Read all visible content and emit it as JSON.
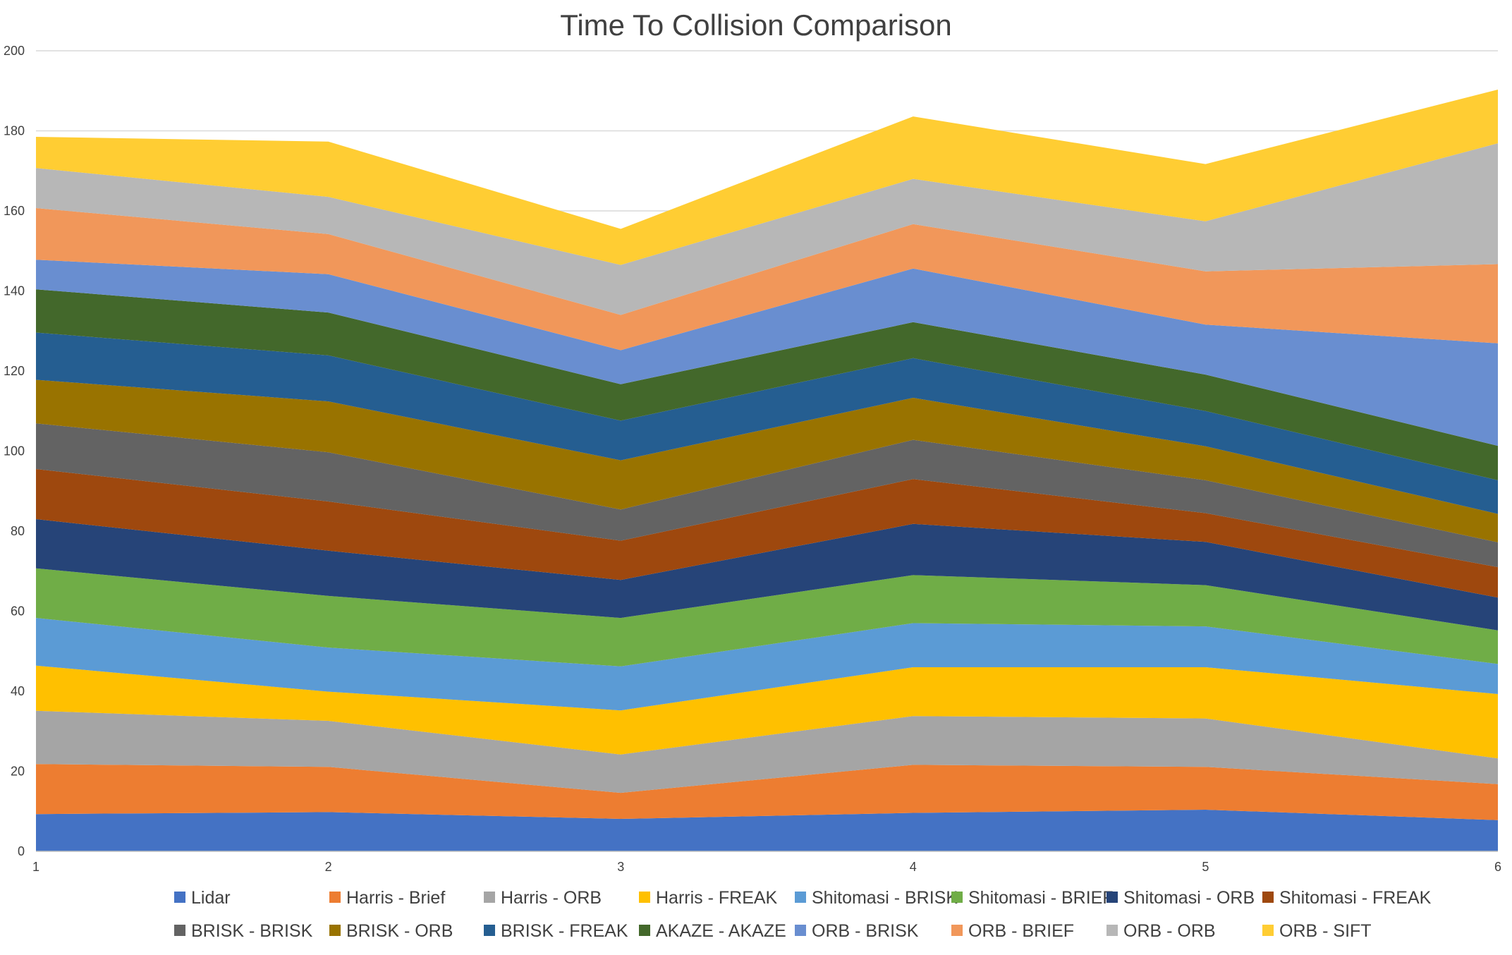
{
  "chart_data": {
    "type": "area",
    "stacked": true,
    "title": "Time To Collision Comparison",
    "xlabel": "",
    "ylabel": "",
    "categories": [
      "1",
      "2",
      "3",
      "4",
      "5",
      "6"
    ],
    "ylim": [
      0,
      200
    ],
    "yticks": [
      "0",
      "20",
      "40",
      "60",
      "80",
      "100",
      "120",
      "140",
      "160",
      "180",
      "200"
    ],
    "grid": true,
    "legend_position": "bottom",
    "series": [
      {
        "name": "Lidar",
        "color": "#4472C4",
        "values": [
          9.3,
          9.8,
          8.1,
          9.6,
          10.4,
          7.8
        ]
      },
      {
        "name": "Harris - Brief",
        "color": "#ED7D31",
        "values": [
          12.5,
          11.3,
          6.5,
          12.0,
          10.7,
          9.0
        ]
      },
      {
        "name": "Harris - ORB",
        "color": "#A5A5A5",
        "values": [
          13.3,
          11.5,
          9.6,
          12.2,
          12.1,
          6.4
        ]
      },
      {
        "name": "Harris - FREAK",
        "color": "#FFC000",
        "values": [
          11.3,
          7.3,
          11.0,
          12.2,
          12.8,
          16.1
        ]
      },
      {
        "name": "Shitomasi - BRISK",
        "color": "#5B9BD5",
        "values": [
          11.9,
          11.0,
          11.0,
          11.0,
          10.2,
          7.5
        ]
      },
      {
        "name": "Shitomasi - BRIEF",
        "color": "#70AD47",
        "values": [
          12.4,
          12.9,
          12.1,
          12.0,
          10.3,
          8.4
        ]
      },
      {
        "name": "Shitomasi - ORB",
        "color": "#264478",
        "values": [
          12.3,
          11.3,
          9.5,
          12.8,
          10.8,
          8.2
        ]
      },
      {
        "name": "Shitomasi - FREAK",
        "color": "#9E480E",
        "values": [
          12.5,
          12.3,
          9.8,
          11.2,
          7.2,
          7.6
        ]
      },
      {
        "name": "BRISK - BRISK",
        "color": "#636363",
        "values": [
          11.4,
          12.3,
          7.8,
          9.8,
          8.2,
          6.2
        ]
      },
      {
        "name": "BRISK - ORB",
        "color": "#997300",
        "values": [
          10.9,
          12.7,
          12.3,
          10.5,
          8.5,
          7.1
        ]
      },
      {
        "name": "BRISK - FREAK",
        "color": "#255E91",
        "values": [
          11.8,
          11.5,
          9.9,
          9.9,
          8.8,
          8.4
        ]
      },
      {
        "name": "AKAZE - AKAZE",
        "color": "#43682B",
        "values": [
          10.8,
          10.7,
          9.1,
          9.0,
          9.1,
          8.6
        ]
      },
      {
        "name": "ORB - BRISK",
        "color": "#698ED0",
        "values": [
          7.4,
          9.6,
          8.5,
          13.4,
          12.5,
          25.6
        ]
      },
      {
        "name": "ORB - BRIEF",
        "color": "#F1975A",
        "values": [
          12.9,
          10.0,
          8.8,
          11.1,
          13.3,
          19.8
        ]
      },
      {
        "name": "ORB - ORB",
        "color": "#B7B7B7",
        "values": [
          10.0,
          9.3,
          12.5,
          11.3,
          12.5,
          30.2
        ]
      },
      {
        "name": "ORB - SIFT",
        "color": "#FFCD33",
        "values": [
          7.8,
          13.8,
          9.0,
          15.6,
          14.3,
          13.4
        ]
      }
    ]
  }
}
